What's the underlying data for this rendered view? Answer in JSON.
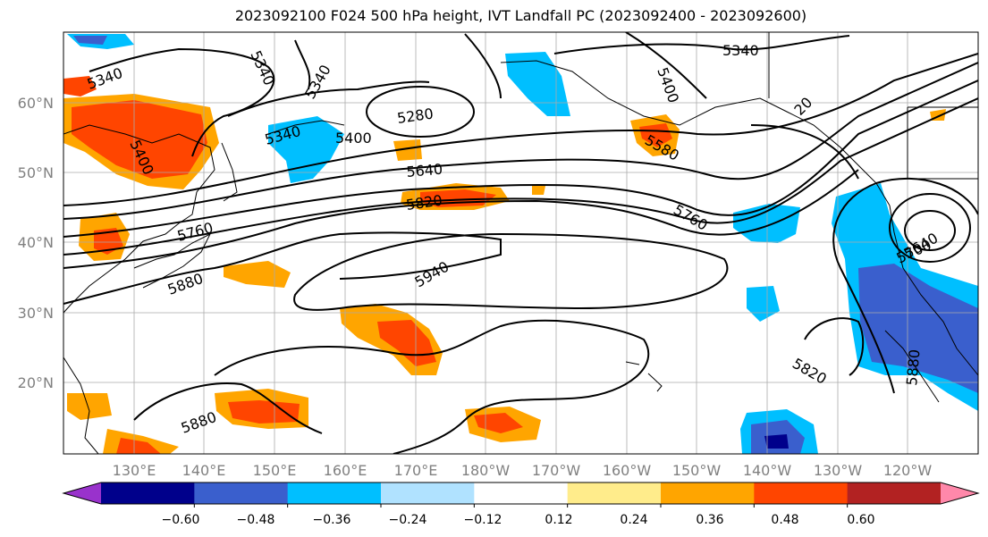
{
  "title": "2023092100 F024 500 hPa height, IVT Landfall PC (2023092400 - 2023092600)",
  "lat_labels": [
    "60°N",
    "50°N",
    "40°N",
    "30°N",
    "20°N"
  ],
  "lon_labels": [
    "130°E",
    "140°E",
    "150°E",
    "160°E",
    "170°E",
    "180°W",
    "170°W",
    "160°W",
    "150°W",
    "140°W",
    "130°W",
    "120°W"
  ],
  "contour_labels": [
    "5340",
    "5340",
    "5340",
    "5340",
    "5400",
    "5280",
    "5400",
    "5400",
    "5640",
    "5820",
    "5760",
    "5880",
    "5940",
    "5580",
    "5760",
    "5640",
    "5700",
    "5820",
    "5880",
    "5880",
    "20"
  ],
  "colorbar": {
    "colors": [
      "#9932cc",
      "#00008b",
      "#3a5fcd",
      "#00bfff",
      "#b0e2ff",
      "#ffffff",
      "#ffec8b",
      "#ffa500",
      "#ff4500",
      "#b22222",
      "#ff88aa"
    ],
    "tick_labels": [
      "−0.60",
      "−0.48",
      "−0.36",
      "−0.24",
      "−0.12",
      "0.12",
      "0.24",
      "0.36",
      "0.48",
      "0.60"
    ]
  },
  "map_colors": {
    "contour": "#000000",
    "coast": "#000000",
    "grid": "#aaaaaa",
    "tick_label": "#808080"
  }
}
